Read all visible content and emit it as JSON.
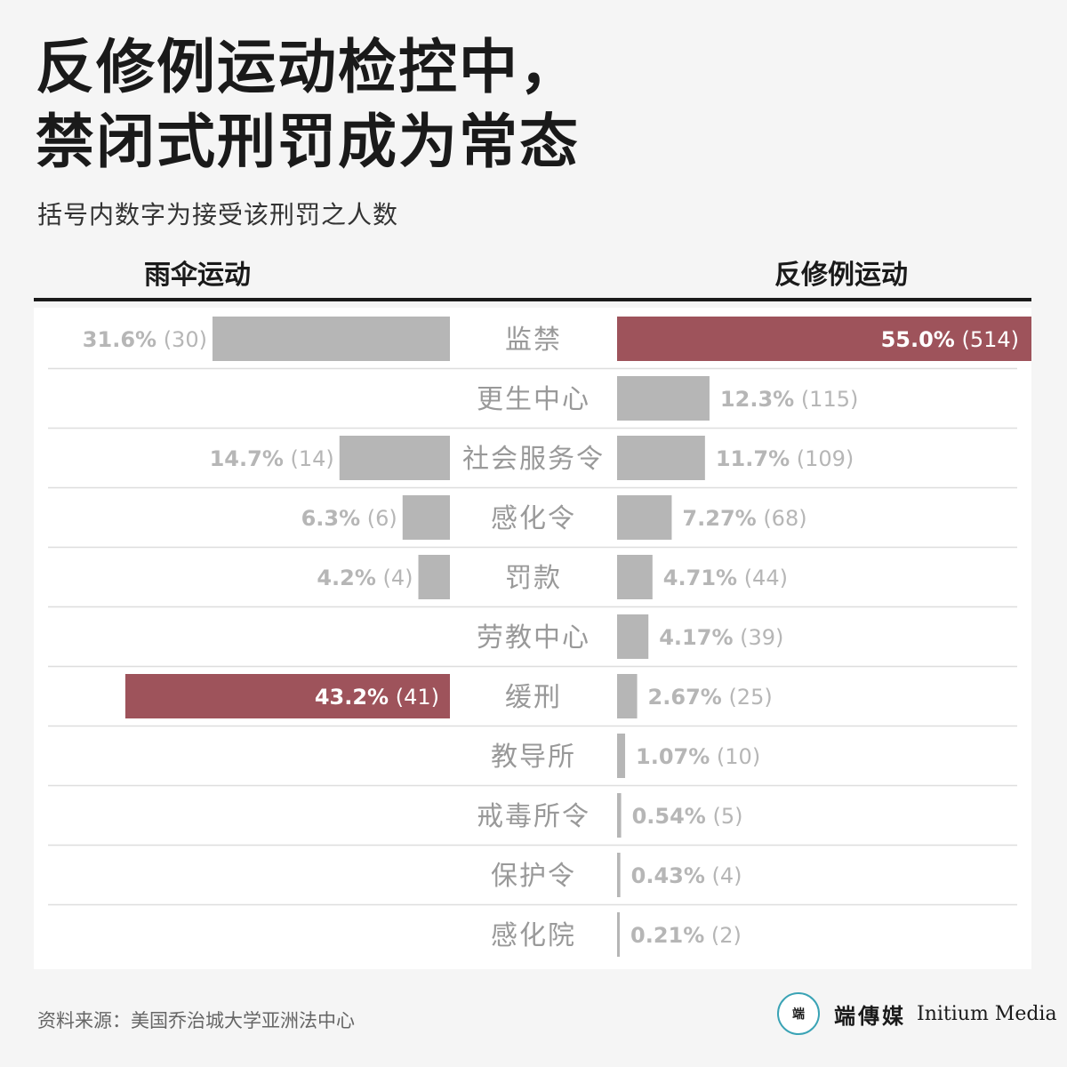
{
  "title_lines": [
    "反修例运动检控中，",
    "禁闭式刑罚成为常态"
  ],
  "subtitle": "括号内数字为接受该刑罚之人数",
  "source": "资料来源：美国乔治城大学亚洲法中心",
  "logo": {
    "mark_text": "端",
    "name_cn": "端傳媒",
    "name_en": "Initium Media"
  },
  "colors": {
    "highlight": "#9e535b",
    "bar": "#b6b6b6",
    "label": "#b6b6b6",
    "category": "#999999",
    "divider": "#dedede",
    "logo_ring": "#3aa3b5"
  },
  "chart_data": {
    "type": "bar",
    "orientation": "horizontal",
    "layout": "back-to-back",
    "categories": [
      "监禁",
      "更生中心",
      "社会服务令",
      "感化令",
      "罚款",
      "劳教中心",
      "缓刑",
      "教导所",
      "戒毒所令",
      "保护令",
      "感化院"
    ],
    "series": [
      {
        "name": "雨伞运动",
        "side": "left",
        "values": [
          31.6,
          null,
          14.7,
          6.3,
          4.2,
          null,
          43.2,
          null,
          null,
          null,
          null
        ],
        "labels": [
          "31.6%",
          null,
          "14.7%",
          "6.3%",
          "4.2%",
          null,
          "43.2%",
          null,
          null,
          null,
          null
        ],
        "counts": [
          "(30)",
          null,
          "(14)",
          "(6)",
          "(4)",
          null,
          "(41)",
          null,
          null,
          null,
          null
        ],
        "highlight_index": 6
      },
      {
        "name": "反修例运动",
        "side": "right",
        "values": [
          55.0,
          12.3,
          11.7,
          7.27,
          4.71,
          4.17,
          2.67,
          1.07,
          0.54,
          0.43,
          0.21
        ],
        "labels": [
          "55.0%",
          "12.3%",
          "11.7%",
          "7.27%",
          "4.71%",
          "4.17%",
          "2.67%",
          "1.07%",
          "0.54%",
          "0.43%",
          "0.21%"
        ],
        "counts": [
          "(514)",
          "(115)",
          "(109)",
          "(68)",
          "(44)",
          "(39)",
          "(25)",
          "(10)",
          "(5)",
          "(4)",
          "(2)"
        ],
        "highlight_index": 0
      }
    ]
  }
}
